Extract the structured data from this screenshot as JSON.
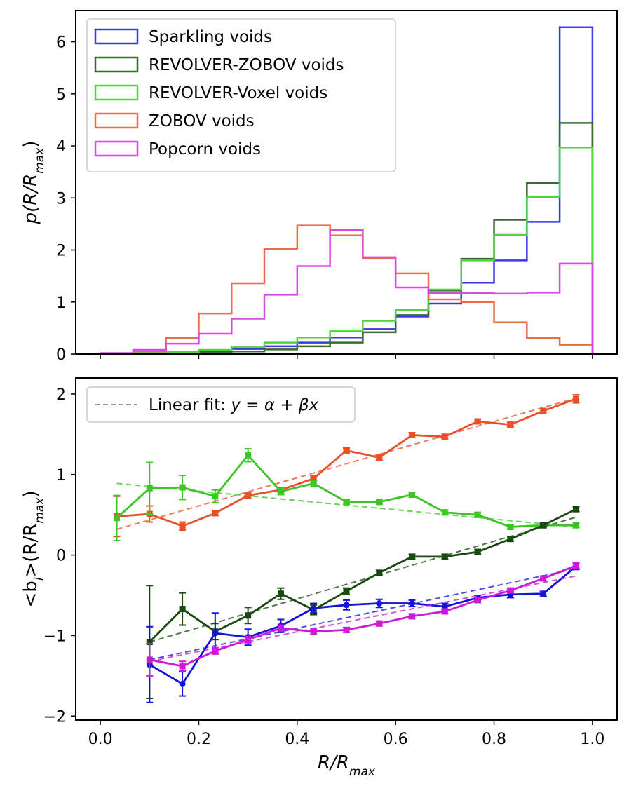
{
  "chart_data": [
    {
      "type": "histogram",
      "ylabel": "p(R/R_max)",
      "ylabel_main": "p(R/R",
      "ylabel_sub": "max",
      "ylabel_tail": ")",
      "xlim": [
        -0.05,
        1.05
      ],
      "ylim": [
        0,
        6.6
      ],
      "yticks": [
        0,
        1,
        2,
        3,
        4,
        5,
        6
      ],
      "ytick_labels": [
        "0",
        "1",
        "2",
        "3",
        "4",
        "5",
        "6"
      ],
      "xticks": [
        0.0,
        0.2,
        0.4,
        0.6,
        0.8,
        1.0
      ],
      "legend_position": "upper-left",
      "bin_edges": [
        0.0,
        0.0667,
        0.1333,
        0.2,
        0.2667,
        0.3333,
        0.4,
        0.4667,
        0.5333,
        0.6,
        0.6667,
        0.7333,
        0.8,
        0.8667,
        0.9333,
        1.0
      ],
      "series": [
        {
          "name": "Sparkling voids",
          "color": "#3b3bdc",
          "values": [
            0.0,
            0.02,
            0.03,
            0.06,
            0.1,
            0.15,
            0.22,
            0.32,
            0.48,
            0.72,
            0.97,
            1.37,
            1.8,
            2.54,
            6.28
          ]
        },
        {
          "name": "REVOLVER-ZOBOV voids",
          "color": "#3a6a32",
          "values": [
            0.0,
            0.01,
            0.02,
            0.03,
            0.05,
            0.09,
            0.15,
            0.22,
            0.42,
            0.75,
            1.22,
            1.83,
            2.58,
            3.29,
            4.44
          ]
        },
        {
          "name": "REVOLVER-Voxel voids",
          "color": "#4fd23d",
          "values": [
            0.0,
            0.02,
            0.04,
            0.08,
            0.13,
            0.22,
            0.32,
            0.44,
            0.64,
            0.85,
            1.24,
            1.8,
            2.29,
            3.02,
            3.97
          ]
        },
        {
          "name": "ZOBOV voids",
          "color": "#ef6a4b",
          "values": [
            0.0,
            0.05,
            0.31,
            0.78,
            1.36,
            2.02,
            2.47,
            2.28,
            1.84,
            1.55,
            1.05,
            1.0,
            0.61,
            0.31,
            0.18
          ]
        },
        {
          "name": "Popcorn voids",
          "color": "#d54be8",
          "values": [
            0.02,
            0.08,
            0.2,
            0.39,
            0.68,
            1.14,
            1.69,
            2.38,
            1.86,
            1.28,
            1.17,
            1.17,
            1.16,
            1.18,
            1.74
          ]
        }
      ]
    },
    {
      "type": "line",
      "xlabel": "R/R_max",
      "xlabel_main": "R/R",
      "xlabel_sub": "max",
      "ylabel": "<b_i>(R/R_max)",
      "ylabel_pre": "<b",
      "ylabel_sub1": "i",
      "ylabel_mid": ">(R/R",
      "ylabel_sub2": "max",
      "ylabel_tail": ")",
      "xlim": [
        -0.05,
        1.05
      ],
      "ylim": [
        -2.05,
        2.2
      ],
      "xticks": [
        0.0,
        0.2,
        0.4,
        0.6,
        0.8,
        1.0
      ],
      "xtick_labels": [
        "0.0",
        "0.2",
        "0.4",
        "0.6",
        "0.8",
        "1.0"
      ],
      "yticks": [
        -2,
        -1,
        0,
        1,
        2
      ],
      "ytick_labels": [
        "−2",
        "−1",
        "0",
        "1",
        "2"
      ],
      "legend_position": "upper-left",
      "legend": {
        "label_prefix": "Linear fit: ",
        "label_formula": "y = α + βx",
        "color": "#999999"
      },
      "series": [
        {
          "color": "#e8502a",
          "x": [
            0.0333,
            0.1,
            0.1667,
            0.2333,
            0.3,
            0.3667,
            0.4333,
            0.5,
            0.5667,
            0.6333,
            0.7,
            0.7667,
            0.8333,
            0.9,
            0.9667
          ],
          "y": [
            0.48,
            0.51,
            0.36,
            0.52,
            0.74,
            0.81,
            0.95,
            1.3,
            1.21,
            1.49,
            1.47,
            1.66,
            1.62,
            1.79,
            1.94
          ],
          "err": [
            0.25,
            0.1,
            0.05,
            0.03,
            0.03,
            0.03,
            0.03,
            0.03,
            0.03,
            0.03,
            0.03,
            0.03,
            0.03,
            0.03,
            0.05
          ],
          "fit": [
            0.32,
            1.95
          ]
        },
        {
          "color": "#3dc425",
          "x": [
            0.0333,
            0.1,
            0.1667,
            0.2333,
            0.3,
            0.3667,
            0.4333,
            0.5,
            0.5667,
            0.6333,
            0.7,
            0.7667,
            0.8333,
            0.9,
            0.9667
          ],
          "y": [
            0.46,
            0.83,
            0.84,
            0.73,
            1.24,
            0.79,
            0.89,
            0.66,
            0.66,
            0.75,
            0.53,
            0.5,
            0.35,
            0.37,
            0.37
          ],
          "err": [
            0.28,
            0.32,
            0.15,
            0.08,
            0.08,
            0.04,
            0.04,
            0.03,
            0.03,
            0.03,
            0.03,
            0.03,
            0.03,
            0.03,
            0.03
          ],
          "fit": [
            0.89,
            0.35
          ]
        },
        {
          "color": "#1a4a12",
          "x": [
            0.1,
            0.1667,
            0.2333,
            0.3,
            0.3667,
            0.4333,
            0.5,
            0.5667,
            0.6333,
            0.7,
            0.7667,
            0.8333,
            0.9,
            0.9667
          ],
          "y": [
            -1.08,
            -0.67,
            -0.95,
            -0.75,
            -0.48,
            -0.68,
            -0.45,
            -0.22,
            -0.02,
            -0.02,
            0.04,
            0.2,
            0.37,
            0.57
          ],
          "err": [
            0.7,
            0.2,
            0.1,
            0.1,
            0.07,
            0.06,
            0.04,
            0.03,
            0.03,
            0.03,
            0.03,
            0.03,
            0.03,
            0.03
          ],
          "fit": [
            -1.08,
            0.47
          ]
        },
        {
          "color": "#1414d8",
          "x": [
            0.1,
            0.1667,
            0.2333,
            0.3,
            0.3667,
            0.4333,
            0.5,
            0.5667,
            0.6333,
            0.7,
            0.7667,
            0.8333,
            0.9,
            0.9667
          ],
          "y": [
            -1.36,
            -1.6,
            -0.97,
            -1.02,
            -0.88,
            -0.66,
            -0.62,
            -0.6,
            -0.6,
            -0.64,
            -0.53,
            -0.49,
            -0.48,
            -0.14
          ],
          "err": [
            0.47,
            0.15,
            0.25,
            0.1,
            0.08,
            0.06,
            0.06,
            0.05,
            0.04,
            0.04,
            0.03,
            0.04,
            0.03,
            0.04
          ],
          "fit": [
            -1.3,
            -0.17
          ]
        },
        {
          "color": "#cc1ad8",
          "x": [
            0.1,
            0.1667,
            0.2333,
            0.3,
            0.3667,
            0.4333,
            0.5,
            0.5667,
            0.6333,
            0.7,
            0.7667,
            0.8333,
            0.9,
            0.9667
          ],
          "y": [
            -1.3,
            -1.38,
            -1.19,
            -1.05,
            -0.91,
            -0.95,
            -0.93,
            -0.85,
            -0.76,
            -0.7,
            -0.56,
            -0.44,
            -0.29,
            -0.13
          ],
          "err": [
            0.2,
            0.06,
            0.04,
            0.04,
            0.04,
            0.03,
            0.03,
            0.03,
            0.03,
            0.03,
            0.03,
            0.03,
            0.03,
            0.03
          ],
          "fit": [
            -1.32,
            -0.26
          ]
        }
      ]
    }
  ]
}
